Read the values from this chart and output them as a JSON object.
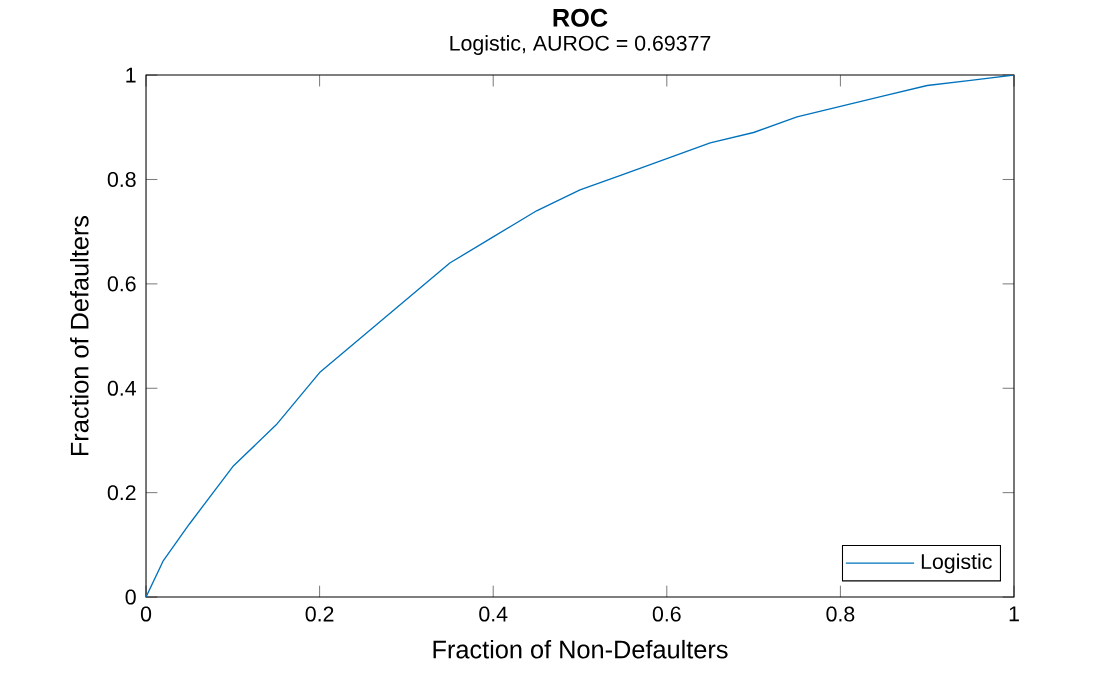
{
  "chart_data": {
    "type": "line",
    "title": "ROC",
    "subtitle": "Logistic, AUROC = 0.69377",
    "xlabel": "Fraction of Non-Defaulters",
    "ylabel": "Fraction of Defaulters",
    "x": [
      0,
      0.02,
      0.05,
      0.1,
      0.15,
      0.2,
      0.25,
      0.3,
      0.35,
      0.4,
      0.45,
      0.5,
      0.55,
      0.6,
      0.65,
      0.7,
      0.75,
      0.8,
      0.85,
      0.9,
      0.95,
      1
    ],
    "series": [
      {
        "name": "Logistic",
        "color": "#0072bd",
        "values": [
          0,
          0.07,
          0.14,
          0.25,
          0.33,
          0.43,
          0.5,
          0.57,
          0.64,
          0.69,
          0.74,
          0.78,
          0.81,
          0.84,
          0.87,
          0.89,
          0.92,
          0.94,
          0.96,
          0.98,
          0.99,
          1
        ]
      }
    ],
    "xlim": [
      0,
      1
    ],
    "ylim": [
      0,
      1
    ],
    "xticks": [
      0,
      0.2,
      0.4,
      0.6,
      0.8,
      1
    ],
    "yticks": [
      0,
      0.2,
      0.4,
      0.6,
      0.8,
      1
    ],
    "legend": "bottom right",
    "grid": false,
    "marker": "none",
    "line_style": "solid"
  }
}
